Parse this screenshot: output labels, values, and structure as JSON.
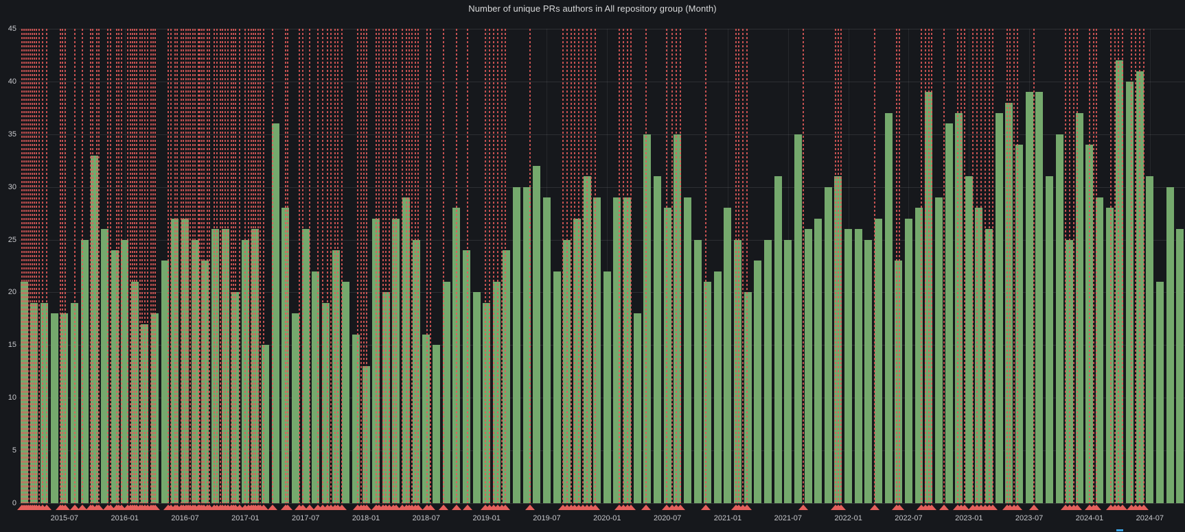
{
  "title": "Number of unique PRs authors in All repository group (Month)",
  "chart_data": {
    "type": "bar",
    "title": "Number of unique PRs authors in All repository group (Month)",
    "series_name": "unique PRs authors",
    "xlabel": "",
    "ylabel": "",
    "ylim": [
      0,
      45
    ],
    "y_ticks": [
      0,
      5,
      10,
      15,
      20,
      25,
      30,
      35,
      40,
      45
    ],
    "grid": true,
    "legend_position": "none",
    "categories": [
      "2015-03",
      "2015-04",
      "2015-05",
      "2015-06",
      "2015-07",
      "2015-08",
      "2015-09",
      "2015-10",
      "2015-11",
      "2015-12",
      "2016-01",
      "2016-02",
      "2016-03",
      "2016-04",
      "2016-05",
      "2016-06",
      "2016-07",
      "2016-08",
      "2016-09",
      "2016-10",
      "2016-11",
      "2016-12",
      "2017-01",
      "2017-02",
      "2017-03",
      "2017-04",
      "2017-05",
      "2017-06",
      "2017-07",
      "2017-08",
      "2017-09",
      "2017-10",
      "2017-11",
      "2017-12",
      "2018-01",
      "2018-02",
      "2018-03",
      "2018-04",
      "2018-05",
      "2018-06",
      "2018-07",
      "2018-08",
      "2018-09",
      "2018-10",
      "2018-11",
      "2018-12",
      "2019-01",
      "2019-02",
      "2019-03",
      "2019-04",
      "2019-05",
      "2019-06",
      "2019-07",
      "2019-08",
      "2019-09",
      "2019-10",
      "2019-11",
      "2019-12",
      "2020-01",
      "2020-02",
      "2020-03",
      "2020-04",
      "2020-05",
      "2020-06",
      "2020-07",
      "2020-08",
      "2020-09",
      "2020-10",
      "2020-11",
      "2020-12",
      "2021-01",
      "2021-02",
      "2021-03",
      "2021-04",
      "2021-05",
      "2021-06",
      "2021-07",
      "2021-08",
      "2021-09",
      "2021-10",
      "2021-11",
      "2021-12",
      "2022-01",
      "2022-02",
      "2022-03",
      "2022-04",
      "2022-05",
      "2022-06",
      "2022-07",
      "2022-08",
      "2022-09",
      "2022-10",
      "2022-11",
      "2022-12",
      "2023-01",
      "2023-02",
      "2023-03",
      "2023-04",
      "2023-05",
      "2023-06",
      "2023-07",
      "2023-08",
      "2023-09",
      "2023-10",
      "2023-11",
      "2023-12",
      "2024-01",
      "2024-02",
      "2024-03",
      "2024-04",
      "2024-05",
      "2024-06",
      "2024-07",
      "2024-08",
      "2024-09",
      "2024-10"
    ],
    "values": [
      21,
      19,
      19,
      18,
      18,
      19,
      25,
      33,
      26,
      24,
      25,
      21,
      17,
      18,
      23,
      27,
      27,
      25,
      23,
      26,
      26,
      20,
      25,
      26,
      15,
      36,
      28,
      18,
      26,
      22,
      19,
      24,
      21,
      16,
      13,
      27,
      20,
      27,
      29,
      25,
      16,
      15,
      21,
      28,
      24,
      20,
      19,
      21,
      24,
      30,
      30,
      32,
      29,
      22,
      25,
      27,
      31,
      29,
      22,
      29,
      29,
      18,
      35,
      31,
      28,
      35,
      29,
      25,
      21,
      22,
      28,
      25,
      20,
      23,
      25,
      31,
      25,
      35,
      26,
      27,
      30,
      31,
      26,
      26,
      25,
      27,
      37,
      23,
      27,
      28,
      39,
      29,
      36,
      37,
      31,
      28,
      26,
      37,
      38,
      34,
      39,
      39,
      31,
      35,
      25,
      37,
      34,
      29,
      28,
      42,
      40,
      41,
      31,
      21,
      30,
      26
    ],
    "x_ticks": [
      {
        "m": 4,
        "label": "2015-07"
      },
      {
        "m": 10,
        "label": "2016-01"
      },
      {
        "m": 16,
        "label": "2016-07"
      },
      {
        "m": 22,
        "label": "2017-01"
      },
      {
        "m": 28,
        "label": "2017-07"
      },
      {
        "m": 34,
        "label": "2018-01"
      },
      {
        "m": 40,
        "label": "2018-07"
      },
      {
        "m": 46,
        "label": "2019-01"
      },
      {
        "m": 52,
        "label": "2019-07"
      },
      {
        "m": 58,
        "label": "2020-01"
      },
      {
        "m": 64,
        "label": "2020-07"
      },
      {
        "m": 70,
        "label": "2021-01"
      },
      {
        "m": 76,
        "label": "2021-07"
      },
      {
        "m": 82,
        "label": "2022-01"
      },
      {
        "m": 88,
        "label": "2022-07"
      },
      {
        "m": 94,
        "label": "2023-01"
      },
      {
        "m": 100,
        "label": "2023-07"
      },
      {
        "m": 106,
        "label": "2024-01"
      },
      {
        "m": 112,
        "label": "2024-07"
      }
    ],
    "annotations_months": [
      -0.2,
      0.0,
      0.2,
      0.4,
      0.6,
      0.8,
      1.0,
      1.2,
      1.5,
      1.8,
      2.2,
      3.6,
      3.8,
      4.1,
      5.0,
      5.8,
      6.6,
      6.8,
      7.2,
      7.4,
      8.3,
      8.6,
      9.2,
      9.4,
      9.7,
      10.3,
      10.6,
      10.8,
      11.0,
      11.2,
      11.5,
      11.7,
      12.0,
      12.3,
      12.6,
      12.8,
      13.0,
      14.3,
      14.6,
      15.0,
      15.2,
      15.6,
      15.8,
      16.1,
      16.3,
      16.5,
      16.8,
      17.0,
      17.3,
      17.5,
      17.7,
      17.9,
      18.2,
      18.4,
      18.9,
      19.2,
      19.5,
      19.7,
      20.0,
      20.3,
      20.6,
      20.8,
      21.0,
      21.4,
      22.0,
      22.3,
      22.6,
      22.8,
      23.0,
      23.3,
      23.5,
      23.8,
      24.7,
      26.0,
      26.2,
      27.4,
      27.7,
      28.4,
      29.2,
      29.7,
      30.2,
      30.5,
      30.9,
      31.2,
      31.6,
      33.2,
      33.5,
      33.8,
      34.1,
      35.0,
      35.3,
      35.7,
      36.0,
      36.3,
      36.7,
      37.0,
      37.6,
      38.0,
      38.3,
      38.6,
      38.9,
      39.2,
      40.1,
      40.4,
      41.7,
      43.0,
      44.1,
      45.9,
      46.3,
      46.7,
      47.1,
      47.5,
      47.9,
      50.3,
      53.6,
      54.0,
      54.4,
      54.8,
      55.2,
      55.6,
      56.0,
      56.4,
      56.8,
      59.2,
      59.6,
      60.0,
      60.4,
      61.9,
      63.9,
      64.5,
      64.9,
      65.3,
      67.8,
      70.8,
      71.1,
      71.5,
      71.9,
      77.5,
      80.7,
      81.0,
      81.3,
      84.6,
      86.8,
      87.1,
      89.3,
      89.7,
      90.0,
      90.3,
      91.5,
      92.9,
      93.2,
      93.6,
      94.4,
      94.8,
      95.2,
      95.6,
      96.0,
      96.4,
      97.8,
      98.1,
      98.5,
      98.8,
      100.5,
      103.6,
      104.0,
      104.4,
      104.8,
      106.0,
      106.4,
      106.7,
      108.1,
      108.5,
      108.9,
      109.3,
      110.2,
      110.6,
      111.0,
      111.4
    ],
    "colors": {
      "background": "#16181c",
      "bar": "#75a96d",
      "annotation": "#e4605c",
      "grid": "rgba(255,255,255,0.10)",
      "axis_text": "#c8c9cd",
      "title_text": "#d8d9da",
      "accent_blue": "#3ba0e0"
    }
  }
}
